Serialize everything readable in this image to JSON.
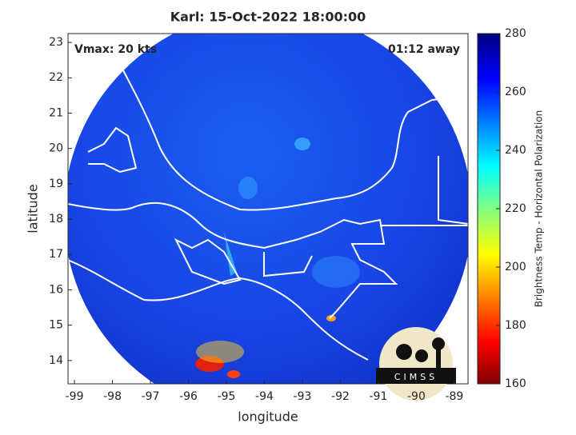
{
  "chart_data": {
    "type": "map",
    "title": "Karl: 15-Oct-2022 18:00:00",
    "annotations": [
      "Vmax: 20 kts",
      "01:12 away"
    ],
    "xlabel": "longitude",
    "ylabel": "latitude",
    "xlim": [
      -99.17,
      -88.64
    ],
    "xticks": [
      -99,
      -98,
      -97,
      -96,
      -95,
      -94,
      -93,
      -92,
      -91,
      -90,
      -89
    ],
    "ylim": [
      13.34,
      23.25
    ],
    "yticks": [
      14,
      15,
      16,
      17,
      18,
      19,
      20,
      21,
      22,
      23
    ],
    "colorbar": {
      "label": "Brightness Temp - Horizontal Polarization",
      "lim": [
        160,
        280
      ],
      "ticks": [
        160,
        180,
        200,
        220,
        240,
        260,
        280
      ]
    },
    "logo": "CIMSS"
  }
}
